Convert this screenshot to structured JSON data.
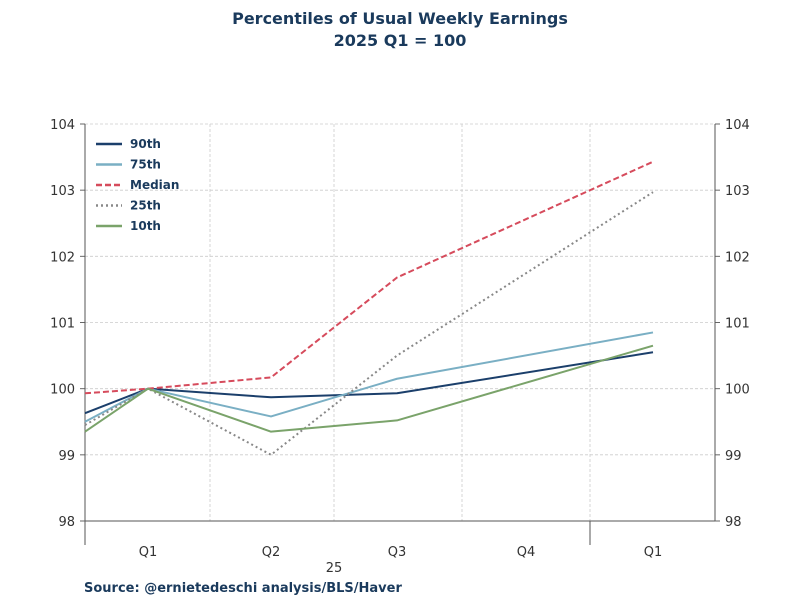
{
  "chart_data": {
    "type": "line",
    "title": "Percentiles of Usual Weekly Earnings",
    "subtitle": "2025 Q1 = 100",
    "source": "Source:  @ernietedeschi analysis/BLS/Haver",
    "categories": [
      "Q4",
      "Q1",
      "Q2",
      "Q3",
      "Q4",
      "Q1"
    ],
    "x_tick_labels": [
      "Q1",
      "Q2",
      "Q3",
      "Q4",
      "Q1"
    ],
    "x_year_label": "25",
    "ylim": [
      98,
      104
    ],
    "yticks": [
      "98",
      "99",
      "100",
      "101",
      "102",
      "103",
      "104"
    ],
    "grid": true,
    "legend_position": "top-left",
    "series": [
      {
        "name": "90th",
        "color": "#1b3f6b",
        "dash": "solid",
        "values": [
          99.63,
          100.0,
          99.87,
          99.93,
          null,
          100.55
        ]
      },
      {
        "name": "75th",
        "color": "#7aafc4",
        "dash": "solid",
        "values": [
          99.5,
          100.0,
          99.58,
          100.15,
          null,
          100.85
        ]
      },
      {
        "name": "Median",
        "color": "#d64b5c",
        "dash": "dashed",
        "values": [
          99.93,
          100.0,
          100.17,
          101.68,
          null,
          103.43
        ]
      },
      {
        "name": "25th",
        "color": "#888888",
        "dash": "dotted",
        "values": [
          99.45,
          100.0,
          99.0,
          100.5,
          null,
          102.97
        ]
      },
      {
        "name": "10th",
        "color": "#7aa36a",
        "dash": "solid",
        "values": [
          99.35,
          100.0,
          99.35,
          99.52,
          null,
          100.65
        ]
      }
    ]
  }
}
